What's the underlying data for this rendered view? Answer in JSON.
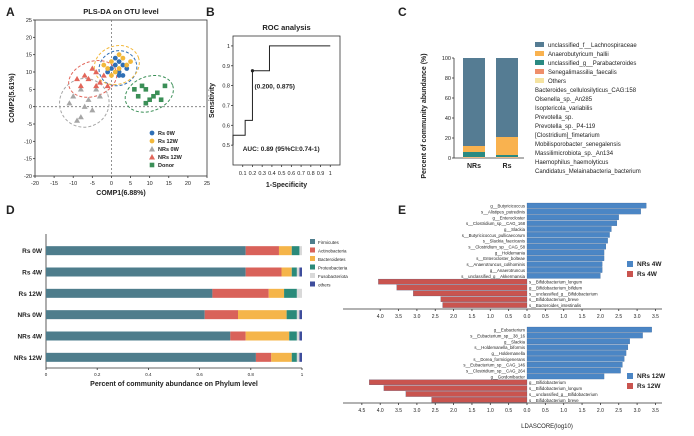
{
  "panel_labels": {
    "A": "A",
    "B": "B",
    "C": "C",
    "D": "D",
    "E": "E"
  },
  "chart_data": [
    {
      "panel": "A",
      "type": "scatter",
      "title": "PLS-DA on OTU level",
      "xlabel": "COMP1(6.88%)",
      "ylabel": "COMP2(5.61%)",
      "xlim": [
        -20,
        25
      ],
      "ylim": [
        -20,
        25
      ],
      "xticks": [
        "-20",
        "-15",
        "-10",
        "-5",
        "0",
        "5",
        "10",
        "15",
        "20",
        "25"
      ],
      "yticks": [
        "-20",
        "-15",
        "-10",
        "-5",
        "0",
        "5",
        "10",
        "15",
        "20",
        "25"
      ],
      "legend_position": "bottom-right",
      "series": [
        {
          "name": "Rs 0W",
          "color": "#2f6fb5",
          "shape": "circle",
          "points": [
            [
              0,
              11
            ],
            [
              1,
              12
            ],
            [
              2,
              10
            ],
            [
              3,
              12
            ],
            [
              2,
              13
            ],
            [
              -1,
              10
            ],
            [
              4,
              11
            ],
            [
              3,
              9
            ],
            [
              1,
              14
            ],
            [
              2,
              9
            ]
          ]
        },
        {
          "name": "Rs 12W",
          "color": "#f2b83b",
          "shape": "circle",
          "points": [
            [
              -2,
              12
            ],
            [
              0,
              13
            ],
            [
              2,
              15
            ],
            [
              -1,
              11
            ],
            [
              3,
              14
            ],
            [
              1,
              10
            ],
            [
              4,
              12
            ],
            [
              0,
              9
            ],
            [
              2,
              11
            ],
            [
              5,
              13
            ]
          ]
        },
        {
          "name": "NRs 0W",
          "color": "#a6a6a6",
          "shape": "triangle",
          "points": [
            [
              -10,
              3
            ],
            [
              -8,
              5
            ],
            [
              -6,
              2
            ],
            [
              -9,
              -4
            ],
            [
              -5,
              -1
            ],
            [
              -7,
              0
            ],
            [
              -3,
              3
            ],
            [
              -8,
              -3
            ],
            [
              -11,
              1
            ],
            [
              -4,
              5
            ]
          ]
        },
        {
          "name": "NRs 12W",
          "color": "#e2665a",
          "shape": "triangle",
          "points": [
            [
              -6,
              8
            ],
            [
              -4,
              10
            ],
            [
              -3,
              7
            ],
            [
              -8,
              6
            ],
            [
              -2,
              9
            ],
            [
              -5,
              11
            ],
            [
              -1,
              6
            ],
            [
              -7,
              9
            ],
            [
              -9,
              8
            ],
            [
              -4,
              6
            ]
          ]
        },
        {
          "name": "Donor",
          "color": "#3b8f57",
          "shape": "square",
          "points": [
            [
              7,
              3
            ],
            [
              9,
              5
            ],
            [
              10,
              2
            ],
            [
              12,
              4
            ],
            [
              8,
              6
            ],
            [
              14,
              6
            ],
            [
              11,
              3
            ],
            [
              6,
              5
            ],
            [
              13,
              2
            ],
            [
              9,
              1
            ]
          ]
        }
      ]
    },
    {
      "panel": "B",
      "type": "line",
      "title": "ROC analysis",
      "xlabel": "1-Specificity",
      "ylabel": "Sensitivity",
      "xlim": [
        0,
        1.1
      ],
      "ylim": [
        0.4,
        1.05
      ],
      "xticks": [
        "0.1",
        "0.2",
        "0.3",
        "0.4",
        "0.5",
        "0.6",
        "0.7",
        "0.8",
        "0.9",
        "1"
      ],
      "yticks": [
        "0.5",
        "0.6",
        "0.7",
        "0.8",
        "0.9",
        "1"
      ],
      "points": [
        [
          0,
          0.5
        ],
        [
          0,
          0.55
        ],
        [
          0.125,
          0.55
        ],
        [
          0.125,
          0.625
        ],
        [
          0.2,
          0.625
        ],
        [
          0.2,
          0.875
        ],
        [
          0.375,
          0.875
        ],
        [
          0.375,
          1.0
        ],
        [
          1.0,
          1.0
        ]
      ],
      "marked_point": {
        "x": 0.2,
        "y": 0.875,
        "label": "(0.200, 0.875)"
      },
      "annotation": "AUC: 0.89 (95%CI:0.74-1)"
    },
    {
      "panel": "C",
      "type": "bar",
      "ylabel": "Percent of community abundance (%)",
      "categories": [
        "NRs",
        "Rs"
      ],
      "ylim": [
        0,
        100
      ],
      "yticks": [
        "0",
        "20",
        "40",
        "60",
        "80",
        "100"
      ],
      "legend_position": "right",
      "series": [
        {
          "name": "unclassified_f__Lachnospiraceae",
          "color": "#557c93",
          "values": [
            88,
            79
          ]
        },
        {
          "name": "Anaerobutyricum_hallii",
          "color": "#f9b24f",
          "values": [
            6,
            18
          ]
        },
        {
          "name": "unclassified_g__Parabacteroides",
          "color": "#2a8a82",
          "values": [
            5,
            2
          ]
        },
        {
          "name": "Senegalimassilia_faecalis",
          "color": "#ef8e6a",
          "values": [
            0.5,
            0.5
          ]
        },
        {
          "name": "Others",
          "color": "#f5e3a0",
          "values": [
            0.5,
            0.5
          ]
        }
      ],
      "extra_legend_entries": [
        "Bacteroides_cellulosilyticus_CAG:158",
        "Olsenella_sp._An285",
        "Isoptericola_variabilis",
        "Prevotella_sp.",
        "Prevotella_sp._P4-119",
        "[Clostridium]_fimetarium",
        "Mobilisporobacter_senegalensis",
        "Massilimicrobiota_sp._An134",
        "Haemophilus_haemolyticus",
        "Candidatus_Melainabacteria_bacterium"
      ]
    },
    {
      "panel": "D",
      "type": "bar",
      "orientation": "horizontal",
      "stacked": true,
      "xlabel": "Percent of community abundance on Phylum level",
      "categories": [
        "Rs 0W",
        "Rs 4W",
        "Rs 12W",
        "NRs 0W",
        "NRs 4W",
        "NRs 12W"
      ],
      "xlim": [
        0,
        1
      ],
      "xticks": [
        "0",
        "0.2",
        "0.4",
        "0.6",
        "0.8",
        "1"
      ],
      "legend_position": "right",
      "series": [
        {
          "name": "Firmicutes",
          "color": "#4e7d8c",
          "values": [
            0.78,
            0.78,
            0.65,
            0.62,
            0.72,
            0.82
          ]
        },
        {
          "name": "Actinobacteria",
          "color": "#d9625a",
          "values": [
            0.13,
            0.14,
            0.22,
            0.13,
            0.06,
            0.06
          ]
        },
        {
          "name": "Bacteroidetes",
          "color": "#f5b54a",
          "values": [
            0.05,
            0.04,
            0.06,
            0.19,
            0.17,
            0.08
          ]
        },
        {
          "name": "Proteobacteria",
          "color": "#2a8a7a",
          "values": [
            0.03,
            0.02,
            0.05,
            0.04,
            0.03,
            0.02
          ]
        },
        {
          "name": "Fusobacteriota",
          "color": "#d9d9d9",
          "values": [
            0.01,
            0.01,
            0.02,
            0.01,
            0.01,
            0.01
          ]
        },
        {
          "name": "others",
          "color": "#3e4d9c",
          "values": [
            0.0,
            0.01,
            0.0,
            0.01,
            0.01,
            0.01
          ]
        }
      ]
    },
    {
      "panel": "E",
      "type": "bar",
      "orientation": "horizontal",
      "xlabel": "LDASCORE(log10)",
      "xticks_top": [
        "4.0",
        "3.5",
        "3.0",
        "2.5",
        "2.0",
        "1.5",
        "1.0",
        "0.5",
        "0.0",
        "0.5",
        "1.0",
        "1.5",
        "2.0",
        "2.5",
        "3.0",
        "3.5"
      ],
      "xticks_bottom": [
        "4.5",
        "4.0",
        "3.5",
        "3.0",
        "2.5",
        "2.0",
        "1.5",
        "1.0",
        "0.5",
        "0.0",
        "0.5",
        "1.0",
        "1.5",
        "2.0",
        "2.5",
        "3.0",
        "3.5"
      ],
      "groups": [
        {
          "legend": [
            {
              "name": "NRs 4W",
              "color": "#4b86c5"
            },
            {
              "name": "Rs 4W",
              "color": "#c9544f"
            }
          ],
          "bars": [
            {
              "label": "g__Butyricicoccus",
              "value": 3.25,
              "group": "NRs 4W"
            },
            {
              "label": "s__Alistipes_putredinis",
              "value": 3.1,
              "group": "NRs 4W"
            },
            {
              "label": "g__Enterocloster",
              "value": 2.5,
              "group": "NRs 4W"
            },
            {
              "label": "s__Clostridium_sp__CAG_168",
              "value": 2.45,
              "group": "NRs 4W"
            },
            {
              "label": "g__Slackia",
              "value": 2.3,
              "group": "NRs 4W"
            },
            {
              "label": "s__Butyricicoccus_pullicaecorum",
              "value": 2.25,
              "group": "NRs 4W"
            },
            {
              "label": "s__Slackia_faecicanis",
              "value": 2.2,
              "group": "NRs 4W"
            },
            {
              "label": "s__Clostridium_sp__CAG_58",
              "value": 2.15,
              "group": "NRs 4W"
            },
            {
              "label": "g__Holdemania",
              "value": 2.1,
              "group": "NRs 4W"
            },
            {
              "label": "s__Enterocloster_bolteae",
              "value": 2.1,
              "group": "NRs 4W"
            },
            {
              "label": "s__Anaerotruncus_colihominis",
              "value": 2.05,
              "group": "NRs 4W"
            },
            {
              "label": "g__Anaerotruncus",
              "value": 2.05,
              "group": "NRs 4W"
            },
            {
              "label": "s__unclassified_g__Akkermansia",
              "value": 2.0,
              "group": "NRs 4W"
            },
            {
              "label": "s__Bifidobacterium_longum",
              "value": 4.05,
              "group": "Rs 4W"
            },
            {
              "label": "g__Bifidobacterium_bifidum",
              "value": 3.55,
              "group": "Rs 4W"
            },
            {
              "label": "s__unclassified_g__Bifidobacterium",
              "value": 3.1,
              "group": "Rs 4W"
            },
            {
              "label": "s__Bifidobacterium_breve",
              "value": 2.35,
              "group": "Rs 4W"
            },
            {
              "label": "s__Bacteroides_intestinalis",
              "value": 2.3,
              "group": "Rs 4W"
            }
          ]
        },
        {
          "legend": [
            {
              "name": "NRs 12W",
              "color": "#4b86c5"
            },
            {
              "name": "Rs 12W",
              "color": "#c9544f"
            }
          ],
          "bars": [
            {
              "label": "g__Eubacterium",
              "value": 3.4,
              "group": "NRs 12W"
            },
            {
              "label": "s__Eubacterium_sp__38_16",
              "value": 3.15,
              "group": "NRs 12W"
            },
            {
              "label": "g__Slackia",
              "value": 2.8,
              "group": "NRs 12W"
            },
            {
              "label": "s__Holdemanella_biformis",
              "value": 2.75,
              "group": "NRs 12W"
            },
            {
              "label": "g__Holdemanella",
              "value": 2.7,
              "group": "NRs 12W"
            },
            {
              "label": "s__Dorea_formicigenerans",
              "value": 2.65,
              "group": "NRs 12W"
            },
            {
              "label": "s__Eubacterium_sp__CAG_146",
              "value": 2.6,
              "group": "NRs 12W"
            },
            {
              "label": "s__Clostridium_sp__CAG_264",
              "value": 2.55,
              "group": "NRs 12W"
            },
            {
              "label": "g__Gordonibacter",
              "value": 2.1,
              "group": "NRs 12W"
            },
            {
              "label": "g__Bifidobacterium",
              "value": 4.3,
              "group": "Rs 12W"
            },
            {
              "label": "s__Bifidobacterium_longum",
              "value": 3.9,
              "group": "Rs 12W"
            },
            {
              "label": "s__unclassified_g__Bifidobacterium",
              "value": 3.3,
              "group": "Rs 12W"
            },
            {
              "label": "s__Bifidobacterium_breve",
              "value": 2.6,
              "group": "Rs 12W"
            }
          ]
        }
      ]
    }
  ]
}
